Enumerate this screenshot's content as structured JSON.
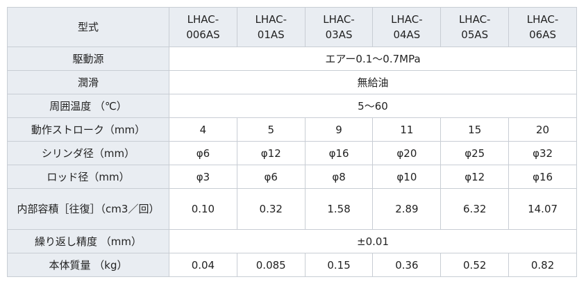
{
  "table": {
    "header": {
      "label": "型式",
      "models": [
        "LHAC-006AS",
        "LHAC-01AS",
        "LHAC-03AS",
        "LHAC-04AS",
        "LHAC-05AS",
        "LHAC-06AS"
      ]
    },
    "rows": [
      {
        "label": "駆動源",
        "cells": [
          "エアー0.1～0.7MPa"
        ]
      },
      {
        "label": "潤滑",
        "cells": [
          "無給油"
        ]
      },
      {
        "label": "周囲温度 （℃）",
        "cells": [
          "5～60"
        ]
      },
      {
        "label": "動作ストローク（mm）",
        "cells": [
          "4",
          "5",
          "9",
          "11",
          "15",
          "20"
        ]
      },
      {
        "label": "シリンダ径（mm）",
        "cells": [
          "φ6",
          "φ12",
          "φ16",
          "φ20",
          "φ25",
          "φ32"
        ]
      },
      {
        "label": "ロッド径（mm）",
        "cells": [
          "φ3",
          "φ6",
          "φ8",
          "φ10",
          "φ12",
          "φ16"
        ]
      },
      {
        "label": "内部容積［往復］（cm3／回）",
        "cells": [
          "0.10",
          "0.32",
          "1.58",
          "2.89",
          "6.32",
          "14.07"
        ]
      },
      {
        "label": "繰り返し精度 （mm）",
        "cells": [
          "±0.01"
        ]
      },
      {
        "label": "本体質量 （kg）",
        "cells": [
          "0.04",
          "0.085",
          "0.15",
          "0.36",
          "0.52",
          "0.82"
        ]
      }
    ]
  }
}
